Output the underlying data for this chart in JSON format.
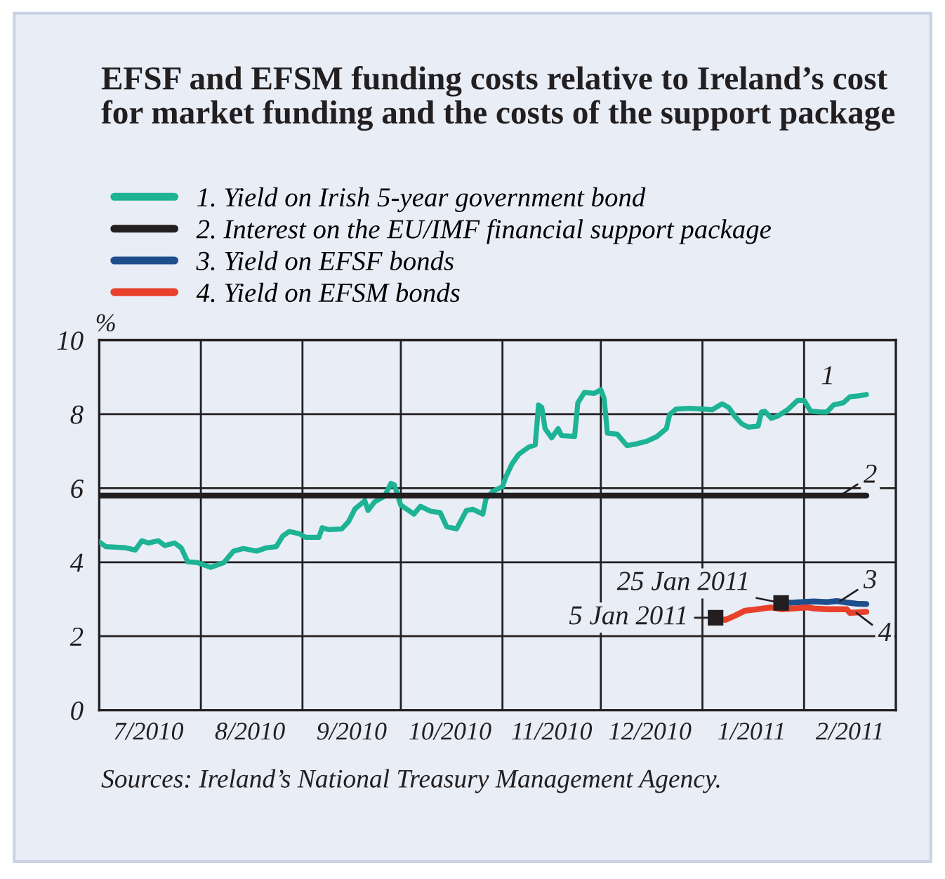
{
  "chart_data": {
    "type": "line",
    "title": "EFSF and EFSM funding costs relative to Ireland’s cost\nfor market funding and the costs of the support package",
    "ylabel": "%",
    "legend": "top left",
    "grid": true,
    "line_style": "solid",
    "marker": "none",
    "xlim": [
      "2010-07-01",
      "2011-03-01"
    ],
    "xticks": [
      {
        "value": "2010-07-01",
        "label": null
      },
      {
        "value": "2010-07-16",
        "label": "7/2010"
      },
      {
        "value": "2010-08-01",
        "label": null
      },
      {
        "value": "2010-08-16",
        "label": "8/2010"
      },
      {
        "value": "2010-09-01",
        "label": null
      },
      {
        "value": "2010-09-16",
        "label": "9/2010"
      },
      {
        "value": "2010-10-01",
        "label": null
      },
      {
        "value": "2010-10-16",
        "label": "10/2010"
      },
      {
        "value": "2010-11-01",
        "label": null
      },
      {
        "value": "2010-11-16",
        "label": "11/2010"
      },
      {
        "value": "2010-12-01",
        "label": null
      },
      {
        "value": "2010-12-16",
        "label": "12/2010"
      },
      {
        "value": "2011-01-01",
        "label": null
      },
      {
        "value": "2011-01-16",
        "label": "1/2011"
      },
      {
        "value": "2011-02-01",
        "label": null
      },
      {
        "value": "2011-02-15",
        "label": "2/2011"
      }
    ],
    "ylim": [
      0,
      10
    ],
    "yticks": [
      0,
      2,
      4,
      6,
      8,
      10
    ],
    "series": [
      {
        "name": "1. Yield on Irish 5-year government bond",
        "color": "#1db394",
        "x": [
          "2010-07-01",
          "2010-07-03",
          "2010-07-09",
          "2010-07-12",
          "2010-07-14",
          "2010-07-16",
          "2010-07-19",
          "2010-07-21",
          "2010-07-24",
          "2010-07-26",
          "2010-07-28",
          "2010-07-31",
          "2010-08-04",
          "2010-08-08",
          "2010-08-11",
          "2010-08-14",
          "2010-08-18",
          "2010-08-21",
          "2010-08-24",
          "2010-08-26",
          "2010-08-28",
          "2010-08-31",
          "2010-09-02",
          "2010-09-06",
          "2010-09-07",
          "2010-09-09",
          "2010-09-13",
          "2010-09-15",
          "2010-09-17",
          "2010-09-20",
          "2010-09-21",
          "2010-09-23",
          "2010-09-26",
          "2010-09-28",
          "2010-09-29",
          "2010-10-01",
          "2010-10-05",
          "2010-10-07",
          "2010-10-10",
          "2010-10-13",
          "2010-10-15",
          "2010-10-18",
          "2010-10-21",
          "2010-10-23",
          "2010-10-26",
          "2010-10-27",
          "2010-10-29",
          "2010-11-01",
          "2010-11-02",
          "2010-11-04",
          "2010-11-06",
          "2010-11-09",
          "2010-11-11",
          "2010-11-12",
          "2010-11-13",
          "2010-11-14",
          "2010-11-16",
          "2010-11-18",
          "2010-11-19",
          "2010-11-23",
          "2010-11-24",
          "2010-11-26",
          "2010-11-29",
          "2010-12-01",
          "2010-12-02",
          "2010-12-03",
          "2010-12-06",
          "2010-12-09",
          "2010-12-12",
          "2010-12-15",
          "2010-12-18",
          "2010-12-21",
          "2010-12-22",
          "2010-12-24",
          "2010-12-28",
          "2011-01-01",
          "2011-01-04",
          "2011-01-07",
          "2011-01-09",
          "2011-01-11",
          "2011-01-13",
          "2011-01-15",
          "2011-01-18",
          "2011-01-19",
          "2011-01-20",
          "2011-01-22",
          "2011-01-24",
          "2011-01-27",
          "2011-01-30",
          "2011-02-01",
          "2011-02-03",
          "2011-02-06",
          "2011-02-08",
          "2011-02-10",
          "2011-02-13",
          "2011-02-15",
          "2011-02-18",
          "2011-02-20"
        ],
        "values": [
          4.55,
          4.42,
          4.39,
          4.33,
          4.58,
          4.52,
          4.58,
          4.45,
          4.52,
          4.39,
          4.01,
          3.99,
          3.86,
          3.99,
          4.3,
          4.37,
          4.3,
          4.39,
          4.42,
          4.71,
          4.83,
          4.77,
          4.67,
          4.67,
          4.93,
          4.88,
          4.9,
          5.09,
          5.44,
          5.66,
          5.4,
          5.63,
          5.78,
          6.13,
          6.09,
          5.54,
          5.3,
          5.51,
          5.38,
          5.34,
          4.96,
          4.9,
          5.4,
          5.43,
          5.3,
          5.72,
          5.91,
          6.04,
          6.3,
          6.67,
          6.92,
          7.11,
          7.17,
          8.25,
          8.18,
          7.61,
          7.36,
          7.61,
          7.42,
          7.4,
          8.31,
          8.59,
          8.56,
          8.66,
          8.43,
          7.49,
          7.46,
          7.15,
          7.2,
          7.27,
          7.39,
          7.61,
          7.99,
          8.14,
          8.16,
          8.14,
          8.12,
          8.28,
          8.18,
          7.93,
          7.74,
          7.65,
          7.68,
          8.06,
          8.08,
          7.89,
          7.95,
          8.12,
          8.37,
          8.37,
          8.08,
          8.06,
          8.06,
          8.25,
          8.31,
          8.47,
          8.5,
          8.53
        ]
      },
      {
        "name": "2. Interest on the EU/IMF financial support package",
        "color": "#231f20",
        "x": [
          "2010-07-01",
          "2011-02-20"
        ],
        "values": [
          5.8,
          5.8
        ]
      },
      {
        "name": "3. Yield on EFSF bonds",
        "color": "#1f4e8c",
        "x": [
          "2011-01-25",
          "2011-01-29",
          "2011-01-31",
          "2011-02-04",
          "2011-02-08",
          "2011-02-11",
          "2011-02-14",
          "2011-02-17",
          "2011-02-20"
        ],
        "values": [
          2.9,
          2.91,
          2.92,
          2.94,
          2.92,
          2.95,
          2.91,
          2.88,
          2.87
        ]
      },
      {
        "name": "4. Yield on EFSM bonds",
        "color": "#e8402a",
        "x": [
          "2011-01-05",
          "2011-01-08",
          "2011-01-11",
          "2011-01-14",
          "2011-01-18",
          "2011-01-22",
          "2011-01-25",
          "2011-01-29",
          "2011-02-02",
          "2011-02-04",
          "2011-02-08",
          "2011-02-11",
          "2011-02-14",
          "2011-02-15",
          "2011-02-20"
        ],
        "values": [
          2.5,
          2.44,
          2.56,
          2.69,
          2.73,
          2.78,
          2.73,
          2.75,
          2.78,
          2.75,
          2.73,
          2.73,
          2.73,
          2.63,
          2.66
        ]
      }
    ],
    "annotations": [
      {
        "text": "1",
        "x": "2011-02-13",
        "y": 8.3
      },
      {
        "text": "2",
        "x": "2011-02-12",
        "y": 5.8
      },
      {
        "text": "3",
        "x": "2011-02-12",
        "y": 2.95
      },
      {
        "text": "4",
        "x": "2011-02-17",
        "y": 2.63
      },
      {
        "text": "25 Jan 2011",
        "x": "2011-01-25",
        "y": 2.9
      },
      {
        "text": "5 Jan 2011",
        "x": "2011-01-05",
        "y": 2.5
      },
      "Sources: Ireland’s National Treasury Management Agency."
    ]
  }
}
